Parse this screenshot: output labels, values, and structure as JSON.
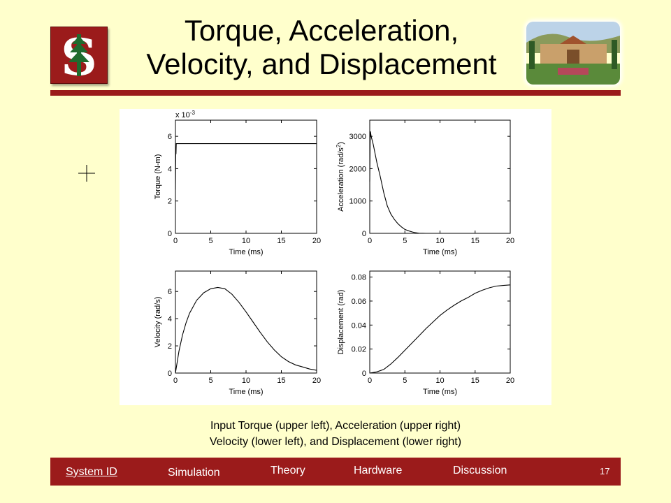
{
  "title": {
    "line1": "Torque, Acceleration,",
    "line2": "Velocity, and Displacement"
  },
  "colors": {
    "background": "#ffffcc",
    "accent": "#9b1b1b",
    "plot_line": "#000000"
  },
  "icons": {
    "logo": "stanford-tree-logo-icon",
    "photo": "campus-photo",
    "cursor": "crosshair-cursor-icon"
  },
  "chart_data": [
    {
      "type": "line",
      "position": "upper-left",
      "title": "",
      "xlabel": "Time (ms)",
      "ylabel": "Torque (N-m)",
      "xlim": [
        0,
        20
      ],
      "ylim": [
        0,
        7
      ],
      "xticks": [
        0,
        5,
        10,
        15,
        20
      ],
      "yticks": [
        0,
        2,
        4,
        6
      ],
      "yticklabels": [
        "0",
        "2",
        "4",
        "6"
      ],
      "scale_label": "x 10",
      "scale_exponent": "-3",
      "x": [
        0,
        0.05,
        0.08,
        0.12,
        0.2,
        1,
        5,
        10,
        15,
        20
      ],
      "y": [
        2.7,
        5.3,
        4.9,
        5.55,
        5.55,
        5.55,
        5.55,
        5.55,
        5.55,
        5.55
      ]
    },
    {
      "type": "line",
      "position": "upper-right",
      "title": "",
      "xlabel": "Time (ms)",
      "ylabel": "Acceleration (rad/s",
      "ylabel_sup": "2",
      "ylabel_end": ")",
      "xlim": [
        0,
        20
      ],
      "ylim": [
        0,
        3500
      ],
      "xticks": [
        0,
        5,
        10,
        15,
        20
      ],
      "yticks": [
        0,
        1000,
        2000,
        3000
      ],
      "yticklabels": [
        "0",
        "1000",
        "2000",
        "3000"
      ],
      "x": [
        0,
        0.05,
        0.1,
        0.2,
        0.5,
        1,
        1.5,
        2,
        2.5,
        3,
        3.5,
        4,
        4.5,
        5,
        5.5,
        6,
        6.5,
        7,
        8,
        10,
        15,
        20
      ],
      "y": [
        1600,
        2800,
        3150,
        3000,
        2750,
        2200,
        1750,
        1250,
        850,
        600,
        430,
        300,
        200,
        120,
        80,
        45,
        20,
        5,
        0,
        0,
        0,
        0
      ]
    },
    {
      "type": "line",
      "position": "lower-left",
      "title": "",
      "xlabel": "Time (ms)",
      "ylabel": "Velocity (rad/s)",
      "xlim": [
        0,
        20
      ],
      "ylim": [
        0,
        7.5
      ],
      "xticks": [
        0,
        5,
        10,
        15,
        20
      ],
      "yticks": [
        0,
        2,
        4,
        6
      ],
      "yticklabels": [
        "0",
        "2",
        "4",
        "6"
      ],
      "x": [
        0,
        0.5,
        1,
        1.5,
        2,
        3,
        4,
        5,
        6,
        7,
        8,
        9,
        10,
        11,
        12,
        13,
        14,
        15,
        16,
        17,
        18,
        19,
        20
      ],
      "y": [
        0,
        1.6,
        2.8,
        3.7,
        4.4,
        5.35,
        5.9,
        6.2,
        6.3,
        6.2,
        5.8,
        5.2,
        4.5,
        3.75,
        3.0,
        2.3,
        1.7,
        1.2,
        0.85,
        0.6,
        0.45,
        0.3,
        0.2
      ]
    },
    {
      "type": "line",
      "position": "lower-right",
      "title": "",
      "xlabel": "Time (ms)",
      "ylabel": "Displacement (rad)",
      "xlim": [
        0,
        20
      ],
      "ylim": [
        0,
        0.085
      ],
      "xticks": [
        0,
        5,
        10,
        15,
        20
      ],
      "yticks": [
        0,
        0.02,
        0.04,
        0.06,
        0.08
      ],
      "yticklabels": [
        "0",
        "0.02",
        "0.04",
        "0.06",
        "0.08"
      ],
      "x": [
        0,
        1,
        2,
        3,
        4,
        5,
        6,
        7,
        8,
        9,
        10,
        11,
        12,
        13,
        14,
        15,
        16,
        17,
        18,
        19,
        20
      ],
      "y": [
        0,
        0.001,
        0.003,
        0.0075,
        0.013,
        0.019,
        0.025,
        0.031,
        0.037,
        0.0425,
        0.048,
        0.0525,
        0.0565,
        0.06,
        0.063,
        0.0665,
        0.069,
        0.071,
        0.0725,
        0.073,
        0.0735
      ]
    }
  ],
  "caption": {
    "line1": "Input Torque (upper left), Acceleration (upper right)",
    "line2": "Velocity (lower left), and Displacement (lower right)"
  },
  "nav": {
    "items": [
      {
        "label": "System ID",
        "active": true
      },
      {
        "label": "Simulation",
        "active": false
      },
      {
        "label": "Theory",
        "active": false
      },
      {
        "label": "Hardware",
        "active": false
      },
      {
        "label": "Discussion",
        "active": false
      }
    ],
    "page_number": "17"
  }
}
